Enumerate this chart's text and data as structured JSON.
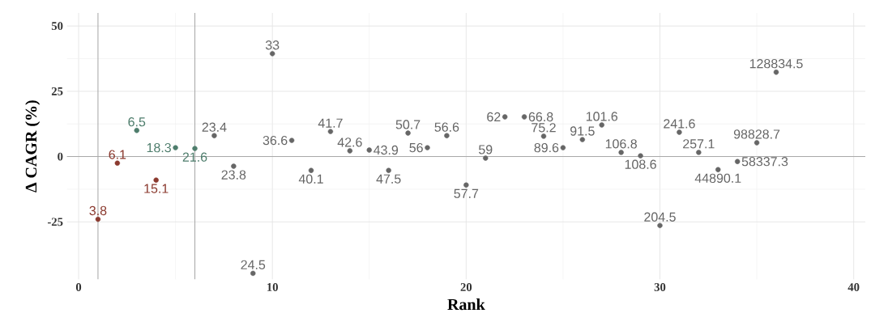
{
  "chart_data": {
    "type": "scatter",
    "xlabel": "Rank",
    "ylabel": "Δ CAGR (%)",
    "x": [
      1,
      2,
      3,
      4,
      5,
      6,
      7,
      8,
      9,
      10,
      11,
      12,
      13,
      14,
      15,
      16,
      17,
      18,
      19,
      20,
      21,
      22,
      23,
      24,
      25,
      26,
      27,
      28,
      29,
      30,
      31,
      32,
      33,
      34,
      35,
      36
    ],
    "values": [
      -24,
      -2.5,
      10,
      -9,
      3.4,
      3.1,
      8,
      -3.7,
      -44.7,
      39.4,
      6.2,
      -5.3,
      9.6,
      2.2,
      2.5,
      -5.3,
      9,
      3.4,
      8,
      -10.9,
      -0.6,
      15.2,
      15.2,
      7.8,
      3.4,
      6.5,
      12.1,
      1.6,
      0.3,
      -26.4,
      9.3,
      1.6,
      -5,
      -1.9,
      5.3,
      32.3
    ],
    "annotations": [
      {
        "text": "3.8",
        "x": 1,
        "y": -24
      },
      {
        "text": "6.1",
        "x": 2,
        "y": -2.5
      },
      {
        "text": "6.5",
        "x": 3,
        "y": 10
      },
      {
        "text": "15.1",
        "x": 4,
        "y": -9
      },
      {
        "text": "18.3",
        "x": 5,
        "y": 3.4
      },
      {
        "text": "21.6",
        "x": 6,
        "y": 3.1
      },
      {
        "text": "23.4",
        "x": 7,
        "y": 8
      },
      {
        "text": "23.8",
        "x": 8,
        "y": -3.7
      },
      {
        "text": "24.5",
        "x": 9,
        "y": -44.7
      },
      {
        "text": "33",
        "x": 10,
        "y": 39.4
      },
      {
        "text": "36.6",
        "x": 11,
        "y": 6.2
      },
      {
        "text": "40.1",
        "x": 12,
        "y": -5.3
      },
      {
        "text": "41.7",
        "x": 13,
        "y": 9.6
      },
      {
        "text": "42.6",
        "x": 14,
        "y": 2.2
      },
      {
        "text": "43.9",
        "x": 15,
        "y": 2.5
      },
      {
        "text": "47.5",
        "x": 16,
        "y": -5.3
      },
      {
        "text": "50.7",
        "x": 17,
        "y": 9
      },
      {
        "text": "56",
        "x": 18,
        "y": 3.4
      },
      {
        "text": "56.6",
        "x": 19,
        "y": 8
      },
      {
        "text": "57.7",
        "x": 20,
        "y": -10.9
      },
      {
        "text": "59",
        "x": 21,
        "y": -0.6
      },
      {
        "text": "62",
        "x": 22,
        "y": 15.2
      },
      {
        "text": "66.8",
        "x": 23,
        "y": 15.2
      },
      {
        "text": "75.2",
        "x": 24,
        "y": 7.8
      },
      {
        "text": "89.6",
        "x": 25,
        "y": 3.4
      },
      {
        "text": "91.5",
        "x": 26,
        "y": 6.5
      },
      {
        "text": "101.6",
        "x": 27,
        "y": 12.1
      },
      {
        "text": "106.8",
        "x": 28,
        "y": 1.6
      },
      {
        "text": "108.6",
        "x": 29,
        "y": 0.3
      },
      {
        "text": "204.5",
        "x": 30,
        "y": -26.4
      },
      {
        "text": "241.6",
        "x": 31,
        "y": 9.3
      },
      {
        "text": "257.1",
        "x": 32,
        "y": 1.6
      },
      {
        "text": "44890.1",
        "x": 33,
        "y": -5
      },
      {
        "text": "58337.3",
        "x": 34,
        "y": -1.9
      },
      {
        "text": "98828.7",
        "x": 35,
        "y": 5.3
      },
      {
        "text": "128834.5",
        "x": 36,
        "y": 32.3
      }
    ],
    "colors": [
      "#8b3a2f",
      "#8b3a2f",
      "#4e7d6c",
      "#8b3a2f",
      "#4e7d6c",
      "#4e7d6c",
      "#666666",
      "#666666",
      "#666666",
      "#666666",
      "#666666",
      "#666666",
      "#666666",
      "#666666",
      "#666666",
      "#666666",
      "#666666",
      "#666666",
      "#666666",
      "#666666",
      "#666666",
      "#666666",
      "#666666",
      "#666666",
      "#666666",
      "#666666",
      "#666666",
      "#666666",
      "#666666",
      "#666666",
      "#666666",
      "#666666",
      "#666666",
      "#666666",
      "#666666",
      "#666666"
    ],
    "xlim": [
      -0.6,
      40.6
    ],
    "ylim": [
      -47,
      55
    ],
    "xticks": [
      0,
      10,
      20,
      30,
      40
    ],
    "yticks": [
      -25,
      0,
      25,
      50
    ],
    "ref_lines": [
      {
        "axis": "x",
        "value": 1,
        "color": "#aaaaaa"
      },
      {
        "axis": "x",
        "value": 6,
        "color": "#aaaaaa"
      },
      {
        "axis": "y",
        "value": 0,
        "color": "#aaaaaa"
      }
    ],
    "grid": true
  }
}
